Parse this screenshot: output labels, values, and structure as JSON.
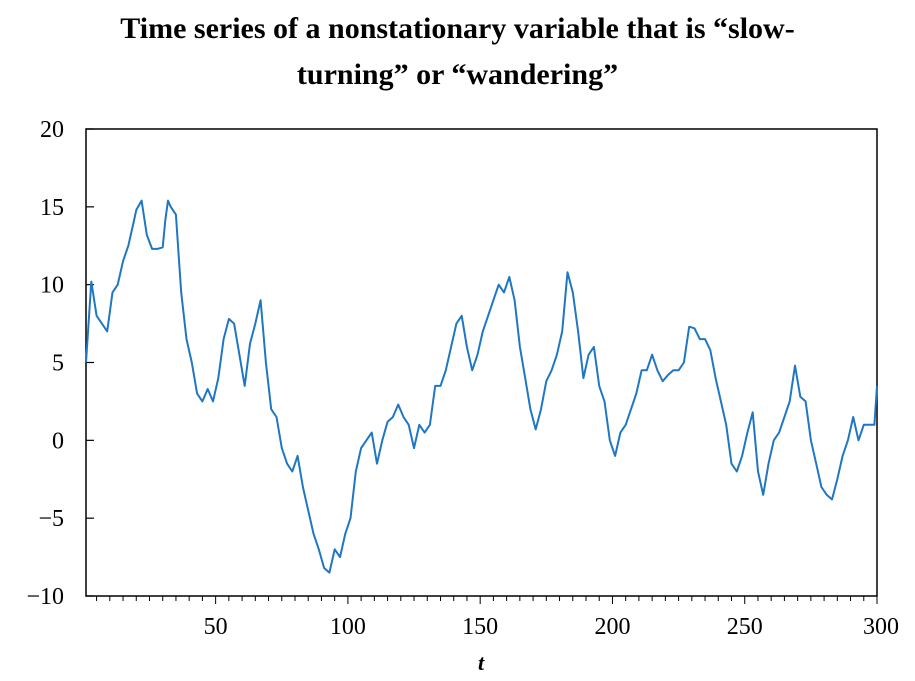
{
  "chart_data": {
    "type": "line",
    "title_line1": "Time series of  a nonstationary variable that is “slow-",
    "title_line2": "turning” or “wandering”",
    "xlabel": "t",
    "ylabel": "",
    "xlim": [
      1,
      300
    ],
    "ylim": [
      -10,
      20
    ],
    "xticks": [
      50,
      100,
      150,
      200,
      250,
      300
    ],
    "xtick_labels": [
      "50",
      "100",
      "150",
      "200",
      "250",
      "300"
    ],
    "yticks": [
      20,
      15,
      10,
      5,
      0,
      -5,
      -10
    ],
    "ytick_labels": [
      "20",
      "15",
      "10",
      "5",
      "0",
      "−5",
      "−10"
    ],
    "grid": false,
    "line_color": "#1f77c4",
    "series": [
      {
        "x": [
          1,
          3,
          5,
          7,
          9,
          11,
          13,
          15,
          17,
          19,
          20,
          22,
          24,
          26,
          28,
          30,
          31,
          32,
          33,
          35,
          37,
          39,
          41,
          43,
          45,
          47,
          49,
          51,
          53,
          55,
          57,
          59,
          61,
          63,
          65,
          67,
          69,
          71,
          73,
          75,
          77,
          79,
          81,
          83,
          85,
          87,
          89,
          91,
          93,
          95,
          97,
          99,
          101,
          103,
          105,
          107,
          109,
          111,
          113,
          115,
          117,
          119,
          121,
          123,
          125,
          127,
          129,
          131,
          133,
          135,
          137,
          139,
          141,
          143,
          145,
          147,
          149,
          151,
          153,
          155,
          157,
          159,
          161,
          163,
          165,
          167,
          169,
          171,
          173,
          175,
          177,
          179,
          181,
          183,
          185,
          187,
          189,
          191,
          193,
          195,
          197,
          199,
          201,
          203,
          205,
          207,
          209,
          211,
          213,
          215,
          217,
          219,
          221,
          223,
          225,
          227,
          229,
          231,
          233,
          235,
          237,
          239,
          241,
          243,
          245,
          247,
          249,
          251,
          253,
          255,
          257,
          259,
          261,
          263,
          265,
          267,
          269,
          271,
          273,
          275,
          277,
          279,
          281,
          283,
          285,
          287,
          289,
          291,
          293,
          295,
          297,
          299,
          300
        ],
        "y": [
          5,
          10.2,
          8,
          7.5,
          7,
          9.5,
          10,
          11.5,
          12.5,
          14,
          14.8,
          15.4,
          13.2,
          12.3,
          12.3,
          12.4,
          14.2,
          15.4,
          15,
          14.5,
          9.5,
          6.5,
          5,
          3,
          2.5,
          3.3,
          2.5,
          4,
          6.5,
          7.8,
          7.5,
          5.5,
          3.5,
          6.2,
          7.5,
          9,
          5,
          2,
          1.5,
          -0.5,
          -1.5,
          -2,
          -1,
          -3,
          -4.5,
          -6,
          -7,
          -8.2,
          -8.5,
          -7,
          -7.5,
          -6,
          -5,
          -2,
          -0.5,
          0,
          0.5,
          -1.5,
          0,
          1.2,
          1.5,
          2.3,
          1.5,
          1,
          -0.5,
          1,
          0.5,
          1,
          3.5,
          3.5,
          4.5,
          6,
          7.5,
          8,
          6,
          4.5,
          5.5,
          7,
          8,
          9,
          10,
          9.5,
          10.5,
          9,
          6,
          4,
          2,
          0.7,
          2,
          3.8,
          4.5,
          5.5,
          7,
          10.8,
          9.5,
          7,
          4,
          5.5,
          6,
          3.5,
          2.5,
          0,
          -1,
          0.5,
          1,
          2,
          3,
          4.5,
          4.5,
          5.5,
          4.5,
          3.8,
          4.2,
          4.5,
          4.5,
          5,
          7.3,
          7.2,
          6.5,
          6.5,
          5.8,
          4,
          2.5,
          1,
          -1.5,
          -2,
          -1,
          0.5,
          1.8,
          -2,
          -3.5,
          -1.5,
          0,
          0.5,
          1.5,
          2.5,
          4.8,
          2.8,
          2.5,
          0,
          -1.5,
          -3,
          -3.5,
          -3.8,
          -2.5,
          -1,
          0,
          1.5,
          0,
          1,
          1,
          1,
          3.5
        ]
      }
    ]
  }
}
